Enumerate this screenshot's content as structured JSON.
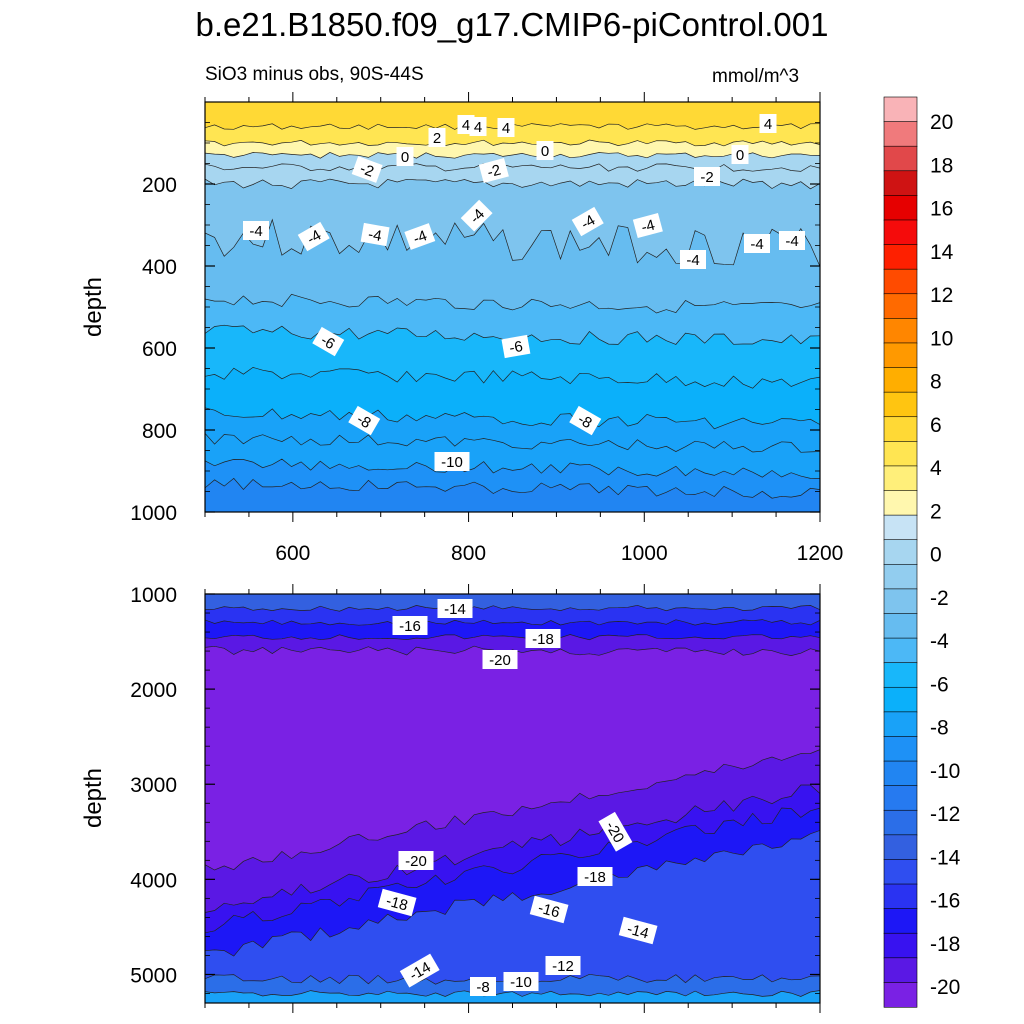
{
  "title": "b.e21.B1850.f09_g17.CMIP6-piControl.001",
  "subtitle_left": "SiO3 minus obs, 90S-44S",
  "subtitle_right": "mmol/m^3",
  "colorbar": {
    "labels": [
      "20",
      "18",
      "16",
      "14",
      "12",
      "10",
      "8",
      "6",
      "4",
      "2",
      "0",
      "-2",
      "-4",
      "-6",
      "-8",
      "-10",
      "-12",
      "-14",
      "-16",
      "-18",
      "-20"
    ],
    "colors": [
      "#f9b3b7",
      "#f07a7c",
      "#e1484a",
      "#cf1313",
      "#e60000",
      "#f50b0b",
      "#fe2000",
      "#ff4b00",
      "#ff6a00",
      "#ff8600",
      "#ff9900",
      "#ffae00",
      "#ffc511",
      "#ffd935",
      "#ffe552",
      "#ffef7a",
      "#fff7ae",
      "#c7e3f5",
      "#a7d6f0",
      "#92cdef",
      "#7ec4ee",
      "#66bcf0",
      "#4cb8f6",
      "#18b7fa",
      "#0bb0fa",
      "#19a2f8",
      "#1e91f6",
      "#2185f2",
      "#267af0",
      "#2b6ee8",
      "#3360e0",
      "#2f4ef0",
      "#2a33f2",
      "#1d17f6",
      "#3812f0",
      "#5a18e4",
      "#7a21e4"
    ]
  },
  "chart_data": [
    {
      "type": "heatmap",
      "panel": "top",
      "ylabel": "depth",
      "xlim": [
        500,
        1200
      ],
      "ylim": [
        1000,
        0
      ],
      "x_ticks": [
        "600",
        "800",
        "1000",
        "1200"
      ],
      "y_ticks": [
        "200",
        "400",
        "600",
        "800",
        "1000"
      ],
      "contour_labels": [
        "4",
        "4",
        "2",
        "4",
        "0",
        "0",
        "4",
        "0",
        "-2",
        "-2",
        "-2",
        "-4",
        "-4",
        "-4",
        "-4",
        "-4",
        "-4",
        "-4",
        "-4",
        "-4",
        "-4",
        "-6",
        "-6",
        "-8",
        "-8",
        "-10"
      ],
      "bands": [
        {
          "depth": 0,
          "value": 5.5
        },
        {
          "depth": 60,
          "value": 4.0
        },
        {
          "depth": 100,
          "value": 2.0
        },
        {
          "depth": 130,
          "value": 0.5
        },
        {
          "depth": 160,
          "value": -0.5
        },
        {
          "depth": 200,
          "value": -2.5
        },
        {
          "depth": 330,
          "value": -3.5
        },
        {
          "depth": 480,
          "value": -4.5
        },
        {
          "depth": 560,
          "value": -5.5
        },
        {
          "depth": 660,
          "value": -6.5
        },
        {
          "depth": 760,
          "value": -7.5
        },
        {
          "depth": 820,
          "value": -8.5
        },
        {
          "depth": 880,
          "value": -9.5
        },
        {
          "depth": 930,
          "value": -10.5
        }
      ]
    },
    {
      "type": "heatmap",
      "panel": "bottom",
      "ylabel": "depth",
      "xlim": [
        500,
        1200
      ],
      "ylim": [
        5300,
        1000
      ],
      "y_ticks": [
        "1000",
        "2000",
        "3000",
        "4000",
        "5000"
      ],
      "contour_labels": [
        "-14",
        "-16",
        "-18",
        "-20",
        "-20",
        "-20",
        "-18",
        "-18",
        "-16",
        "-14",
        "-14",
        "-12",
        "-10",
        "-8"
      ],
      "bands": [
        {
          "depth": 1000,
          "value": -13.5
        },
        {
          "depth": 1150,
          "value": -15.5
        },
        {
          "depth": 1300,
          "value": -17.0
        },
        {
          "depth": 1450,
          "value": -19.0
        },
        {
          "depth": 1600,
          "value": -20.5
        },
        {
          "depth": 3900,
          "value": -19.5
        },
        {
          "depth": 4300,
          "value": -18.5
        },
        {
          "depth": 4500,
          "value": -17.0
        },
        {
          "depth": 4800,
          "value": -15.0
        },
        {
          "depth": 5050,
          "value": -12.0
        },
        {
          "depth": 5200,
          "value": -8.0
        }
      ]
    }
  ]
}
